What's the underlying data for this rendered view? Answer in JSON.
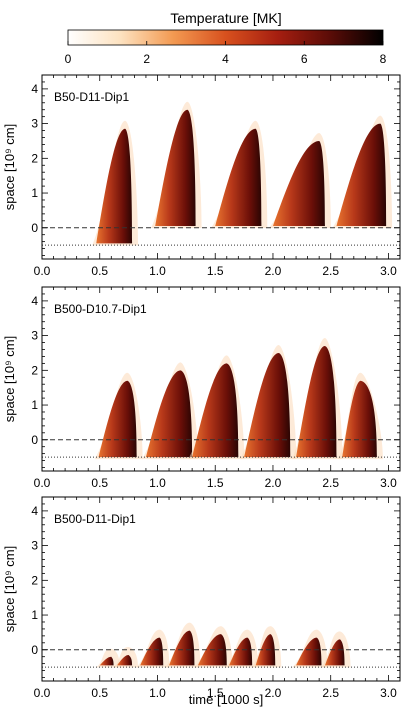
{
  "colorbar": {
    "title": "Temperature [MK]",
    "min": 0,
    "max": 8,
    "ticks": [
      0,
      2,
      4,
      6,
      8
    ],
    "colors": [
      "#ffffff",
      "#fde2c0",
      "#f39a52",
      "#d8511e",
      "#a51e10",
      "#5a0c07",
      "#000000"
    ]
  },
  "axes": {
    "xlabel": "time [1000 s]",
    "ylabel": "space [10⁹ cm]",
    "xlim": [
      0.0,
      3.1
    ],
    "ylim": [
      -0.9,
      4.4
    ],
    "xticks": [
      "0.0",
      "0.5",
      "1.0",
      "1.5",
      "2.0",
      "2.5",
      "3.0"
    ],
    "yticks": [
      "0",
      "1",
      "2",
      "3",
      "4"
    ],
    "dashed_line_y": 0.0,
    "dotted_line_y": -0.5
  },
  "chart_data": [
    {
      "type": "heatmap",
      "label": "B50-D11-Dip1",
      "xlabel": "",
      "ylabel": "space [10⁹ cm]",
      "xlim": [
        0.0,
        3.1
      ],
      "ylim": [
        -0.9,
        4.4
      ],
      "events": [
        {
          "t_start": 0.47,
          "t_end": 0.78,
          "t_peak": 0.72,
          "y_peak": 2.85,
          "y_base": -0.45
        },
        {
          "t_start": 0.98,
          "t_end": 1.33,
          "t_peak": 1.26,
          "y_peak": 3.4,
          "y_base": 0.05
        },
        {
          "t_start": 1.5,
          "t_end": 1.9,
          "t_peak": 1.85,
          "y_peak": 2.85,
          "y_base": 0.05
        },
        {
          "t_start": 2.0,
          "t_end": 2.45,
          "t_peak": 2.4,
          "y_peak": 2.5,
          "y_base": 0.05
        },
        {
          "t_start": 2.55,
          "t_end": 2.98,
          "t_peak": 2.93,
          "y_peak": 3.0,
          "y_base": 0.05
        }
      ]
    },
    {
      "type": "heatmap",
      "label": "B500-D10.7-Dip1",
      "xlabel": "",
      "ylabel": "space [10⁹ cm]",
      "xlim": [
        0.0,
        3.1
      ],
      "ylim": [
        -0.9,
        4.4
      ],
      "events": [
        {
          "t_start": 0.49,
          "t_end": 0.82,
          "t_peak": 0.74,
          "y_peak": 1.7,
          "y_base": -0.5
        },
        {
          "t_start": 0.9,
          "t_end": 1.3,
          "t_peak": 1.2,
          "y_peak": 2.0,
          "y_base": -0.5
        },
        {
          "t_start": 1.3,
          "t_end": 1.7,
          "t_peak": 1.6,
          "y_peak": 2.2,
          "y_base": -0.5
        },
        {
          "t_start": 1.75,
          "t_end": 2.15,
          "t_peak": 2.05,
          "y_peak": 2.5,
          "y_base": -0.5
        },
        {
          "t_start": 2.2,
          "t_end": 2.55,
          "t_peak": 2.45,
          "y_peak": 2.7,
          "y_base": -0.5
        },
        {
          "t_start": 2.6,
          "t_end": 2.9,
          "t_peak": 2.76,
          "y_peak": 1.7,
          "y_base": -0.5
        }
      ]
    },
    {
      "type": "heatmap",
      "label": "B500-D11-Dip1",
      "xlabel": "time [1000 s]",
      "ylabel": "space [10⁹ cm]",
      "xlim": [
        0.0,
        3.1
      ],
      "ylim": [
        -0.9,
        4.4
      ],
      "events": [
        {
          "t_start": 0.5,
          "t_end": 0.62,
          "t_peak": 0.6,
          "y_peak": -0.2,
          "y_base": -0.45
        },
        {
          "t_start": 0.65,
          "t_end": 0.78,
          "t_peak": 0.75,
          "y_peak": -0.15,
          "y_base": -0.45
        },
        {
          "t_start": 0.85,
          "t_end": 1.05,
          "t_peak": 1.02,
          "y_peak": 0.35,
          "y_base": -0.45
        },
        {
          "t_start": 1.1,
          "t_end": 1.32,
          "t_peak": 1.28,
          "y_peak": 0.55,
          "y_base": -0.45
        },
        {
          "t_start": 1.35,
          "t_end": 1.6,
          "t_peak": 1.55,
          "y_peak": 0.45,
          "y_base": -0.45
        },
        {
          "t_start": 1.62,
          "t_end": 1.82,
          "t_peak": 1.78,
          "y_peak": 0.35,
          "y_base": -0.45
        },
        {
          "t_start": 1.85,
          "t_end": 2.02,
          "t_peak": 1.98,
          "y_peak": 0.45,
          "y_base": -0.45
        },
        {
          "t_start": 2.2,
          "t_end": 2.42,
          "t_peak": 2.38,
          "y_peak": 0.35,
          "y_base": -0.45
        },
        {
          "t_start": 2.45,
          "t_end": 2.62,
          "t_peak": 2.58,
          "y_peak": 0.3,
          "y_base": -0.45
        }
      ]
    }
  ]
}
